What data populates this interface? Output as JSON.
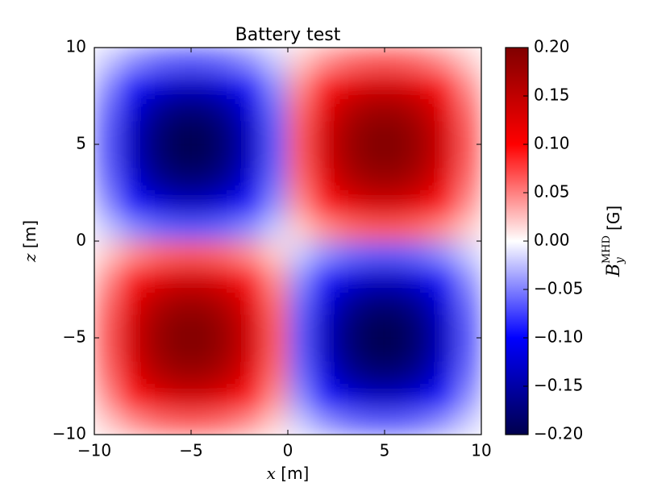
{
  "chart_data": {
    "type": "heatmap",
    "title": "Battery test",
    "x_label": {
      "symbol": "x",
      "unit": "[m]"
    },
    "y_label": {
      "symbol": "z",
      "unit": "[m]"
    },
    "colorbar_label": {
      "symbol": "B",
      "subscript": "y",
      "superscript": "MHD",
      "unit": "[G]"
    },
    "colormap": "seismic",
    "x": [
      -9.375,
      -8.125,
      -6.875,
      -5.625,
      -4.375,
      -3.125,
      -1.875,
      -0.625,
      0.625,
      1.875,
      3.125,
      4.375,
      5.625,
      6.875,
      8.125,
      9.375
    ],
    "y": [
      -9.375,
      -8.125,
      -6.875,
      -5.625,
      -4.375,
      -3.125,
      -1.875,
      -0.625,
      0.625,
      1.875,
      3.125,
      4.375,
      5.625,
      6.875,
      8.125,
      9.375
    ],
    "z": [
      [
        0.02,
        0.042,
        0.056,
        0.063,
        0.063,
        0.056,
        0.042,
        0.02,
        -0.02,
        -0.042,
        -0.056,
        -0.063,
        -0.063,
        -0.056,
        -0.042,
        -0.02
      ],
      [
        0.042,
        0.087,
        0.116,
        0.131,
        0.131,
        0.116,
        0.087,
        0.042,
        -0.042,
        -0.087,
        -0.116,
        -0.131,
        -0.131,
        -0.116,
        -0.087,
        -0.042
      ],
      [
        0.056,
        0.116,
        0.155,
        0.174,
        0.174,
        0.155,
        0.116,
        0.056,
        -0.056,
        -0.116,
        -0.155,
        -0.174,
        -0.174,
        -0.155,
        -0.116,
        -0.056
      ],
      [
        0.063,
        0.131,
        0.174,
        0.196,
        0.196,
        0.174,
        0.131,
        0.063,
        -0.063,
        -0.131,
        -0.174,
        -0.196,
        -0.196,
        -0.174,
        -0.131,
        -0.063
      ],
      [
        0.063,
        0.131,
        0.174,
        0.196,
        0.196,
        0.174,
        0.131,
        0.063,
        -0.063,
        -0.131,
        -0.174,
        -0.196,
        -0.196,
        -0.174,
        -0.131,
        -0.063
      ],
      [
        0.056,
        0.116,
        0.155,
        0.174,
        0.174,
        0.155,
        0.116,
        0.056,
        -0.056,
        -0.116,
        -0.155,
        -0.174,
        -0.174,
        -0.155,
        -0.116,
        -0.056
      ],
      [
        0.042,
        0.087,
        0.116,
        0.131,
        0.131,
        0.116,
        0.087,
        0.042,
        -0.042,
        -0.087,
        -0.116,
        -0.131,
        -0.131,
        -0.116,
        -0.087,
        -0.042
      ],
      [
        0.02,
        0.042,
        0.056,
        0.063,
        0.063,
        0.056,
        0.042,
        0.02,
        -0.02,
        -0.042,
        -0.056,
        -0.063,
        -0.063,
        -0.056,
        -0.042,
        -0.02
      ],
      [
        -0.02,
        -0.042,
        -0.056,
        -0.063,
        -0.063,
        -0.056,
        -0.042,
        -0.02,
        0.02,
        0.042,
        0.056,
        0.063,
        0.063,
        0.056,
        0.042,
        0.02
      ],
      [
        -0.042,
        -0.087,
        -0.116,
        -0.131,
        -0.131,
        -0.116,
        -0.087,
        -0.042,
        0.042,
        0.087,
        0.116,
        0.131,
        0.131,
        0.116,
        0.087,
        0.042
      ],
      [
        -0.056,
        -0.116,
        -0.155,
        -0.174,
        -0.174,
        -0.155,
        -0.116,
        -0.056,
        0.056,
        0.116,
        0.155,
        0.174,
        0.174,
        0.155,
        0.116,
        0.056
      ],
      [
        -0.063,
        -0.131,
        -0.174,
        -0.196,
        -0.196,
        -0.174,
        -0.131,
        -0.063,
        0.063,
        0.131,
        0.174,
        0.196,
        0.196,
        0.174,
        0.131,
        0.063
      ],
      [
        -0.063,
        -0.131,
        -0.174,
        -0.196,
        -0.196,
        -0.174,
        -0.131,
        -0.063,
        0.063,
        0.131,
        0.174,
        0.196,
        0.196,
        0.174,
        0.131,
        0.063
      ],
      [
        -0.056,
        -0.116,
        -0.155,
        -0.174,
        -0.174,
        -0.155,
        -0.116,
        -0.056,
        0.056,
        0.116,
        0.155,
        0.174,
        0.174,
        0.155,
        0.116,
        0.056
      ],
      [
        -0.042,
        -0.087,
        -0.116,
        -0.131,
        -0.131,
        -0.116,
        -0.087,
        -0.042,
        0.042,
        0.087,
        0.116,
        0.131,
        0.131,
        0.116,
        0.087,
        0.042
      ],
      [
        -0.02,
        -0.042,
        -0.056,
        -0.063,
        -0.063,
        -0.056,
        -0.042,
        -0.02,
        0.02,
        0.042,
        0.056,
        0.063,
        0.063,
        0.056,
        0.042,
        0.02
      ]
    ],
    "xlim": [
      -10,
      10
    ],
    "ylim": [
      -10,
      10
    ],
    "xticks": [
      {
        "value": -10,
        "label": "−10"
      },
      {
        "value": -5,
        "label": "−5"
      },
      0,
      5,
      10
    ],
    "yticks": [
      {
        "value": -10,
        "label": "−10"
      },
      {
        "value": -5,
        "label": "−5"
      },
      0,
      5,
      10
    ],
    "clim": [
      -0.2,
      0.2
    ],
    "cticks": [
      {
        "value": -0.2,
        "label": "−0.20"
      },
      {
        "value": -0.15,
        "label": "−0.15"
      },
      {
        "value": -0.1,
        "label": "−0.10"
      },
      {
        "value": -0.05,
        "label": "−0.05"
      },
      {
        "value": 0,
        "label": "0.00"
      },
      {
        "value": 0.05,
        "label": "0.05"
      },
      {
        "value": 0.1,
        "label": "0.10"
      },
      {
        "value": 0.15,
        "label": "0.15"
      },
      {
        "value": 0.2,
        "label": "0.20"
      }
    ]
  }
}
